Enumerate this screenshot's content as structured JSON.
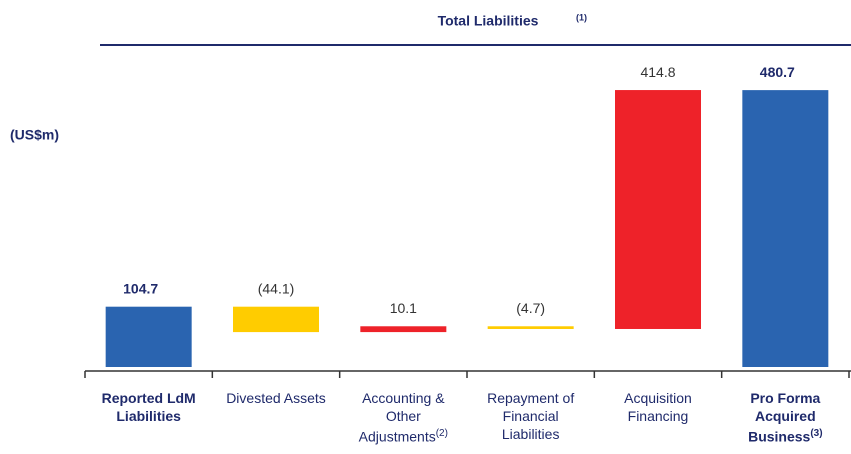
{
  "chart_data": {
    "type": "waterfall",
    "title": "Total Liabilities",
    "title_note": "(1)",
    "y_label": "(US$m)",
    "categories": [
      "Reported LdM Liabilities",
      "Divested Assets",
      "Accounting & Other Adjustments",
      "Repayment of Financial Liabilities",
      "Acquisition Financing",
      "Pro Forma Acquired Business"
    ],
    "category_notes": [
      null,
      null,
      "(2)",
      null,
      null,
      "(3)"
    ],
    "measure": [
      "absolute",
      "relative",
      "relative",
      "relative",
      "relative",
      "total"
    ],
    "values": [
      104.7,
      -44.1,
      10.1,
      -4.7,
      414.8,
      480.7
    ],
    "value_labels": [
      "104.7",
      "(44.1)",
      "10.1",
      "(4.7)",
      "414.8",
      "480.7"
    ],
    "colors": [
      "#2a64b0",
      "#ffcc00",
      "#ee2229",
      "#ffcc00",
      "#ee2229",
      "#2a64b0"
    ],
    "ylim": [
      0,
      500
    ]
  }
}
